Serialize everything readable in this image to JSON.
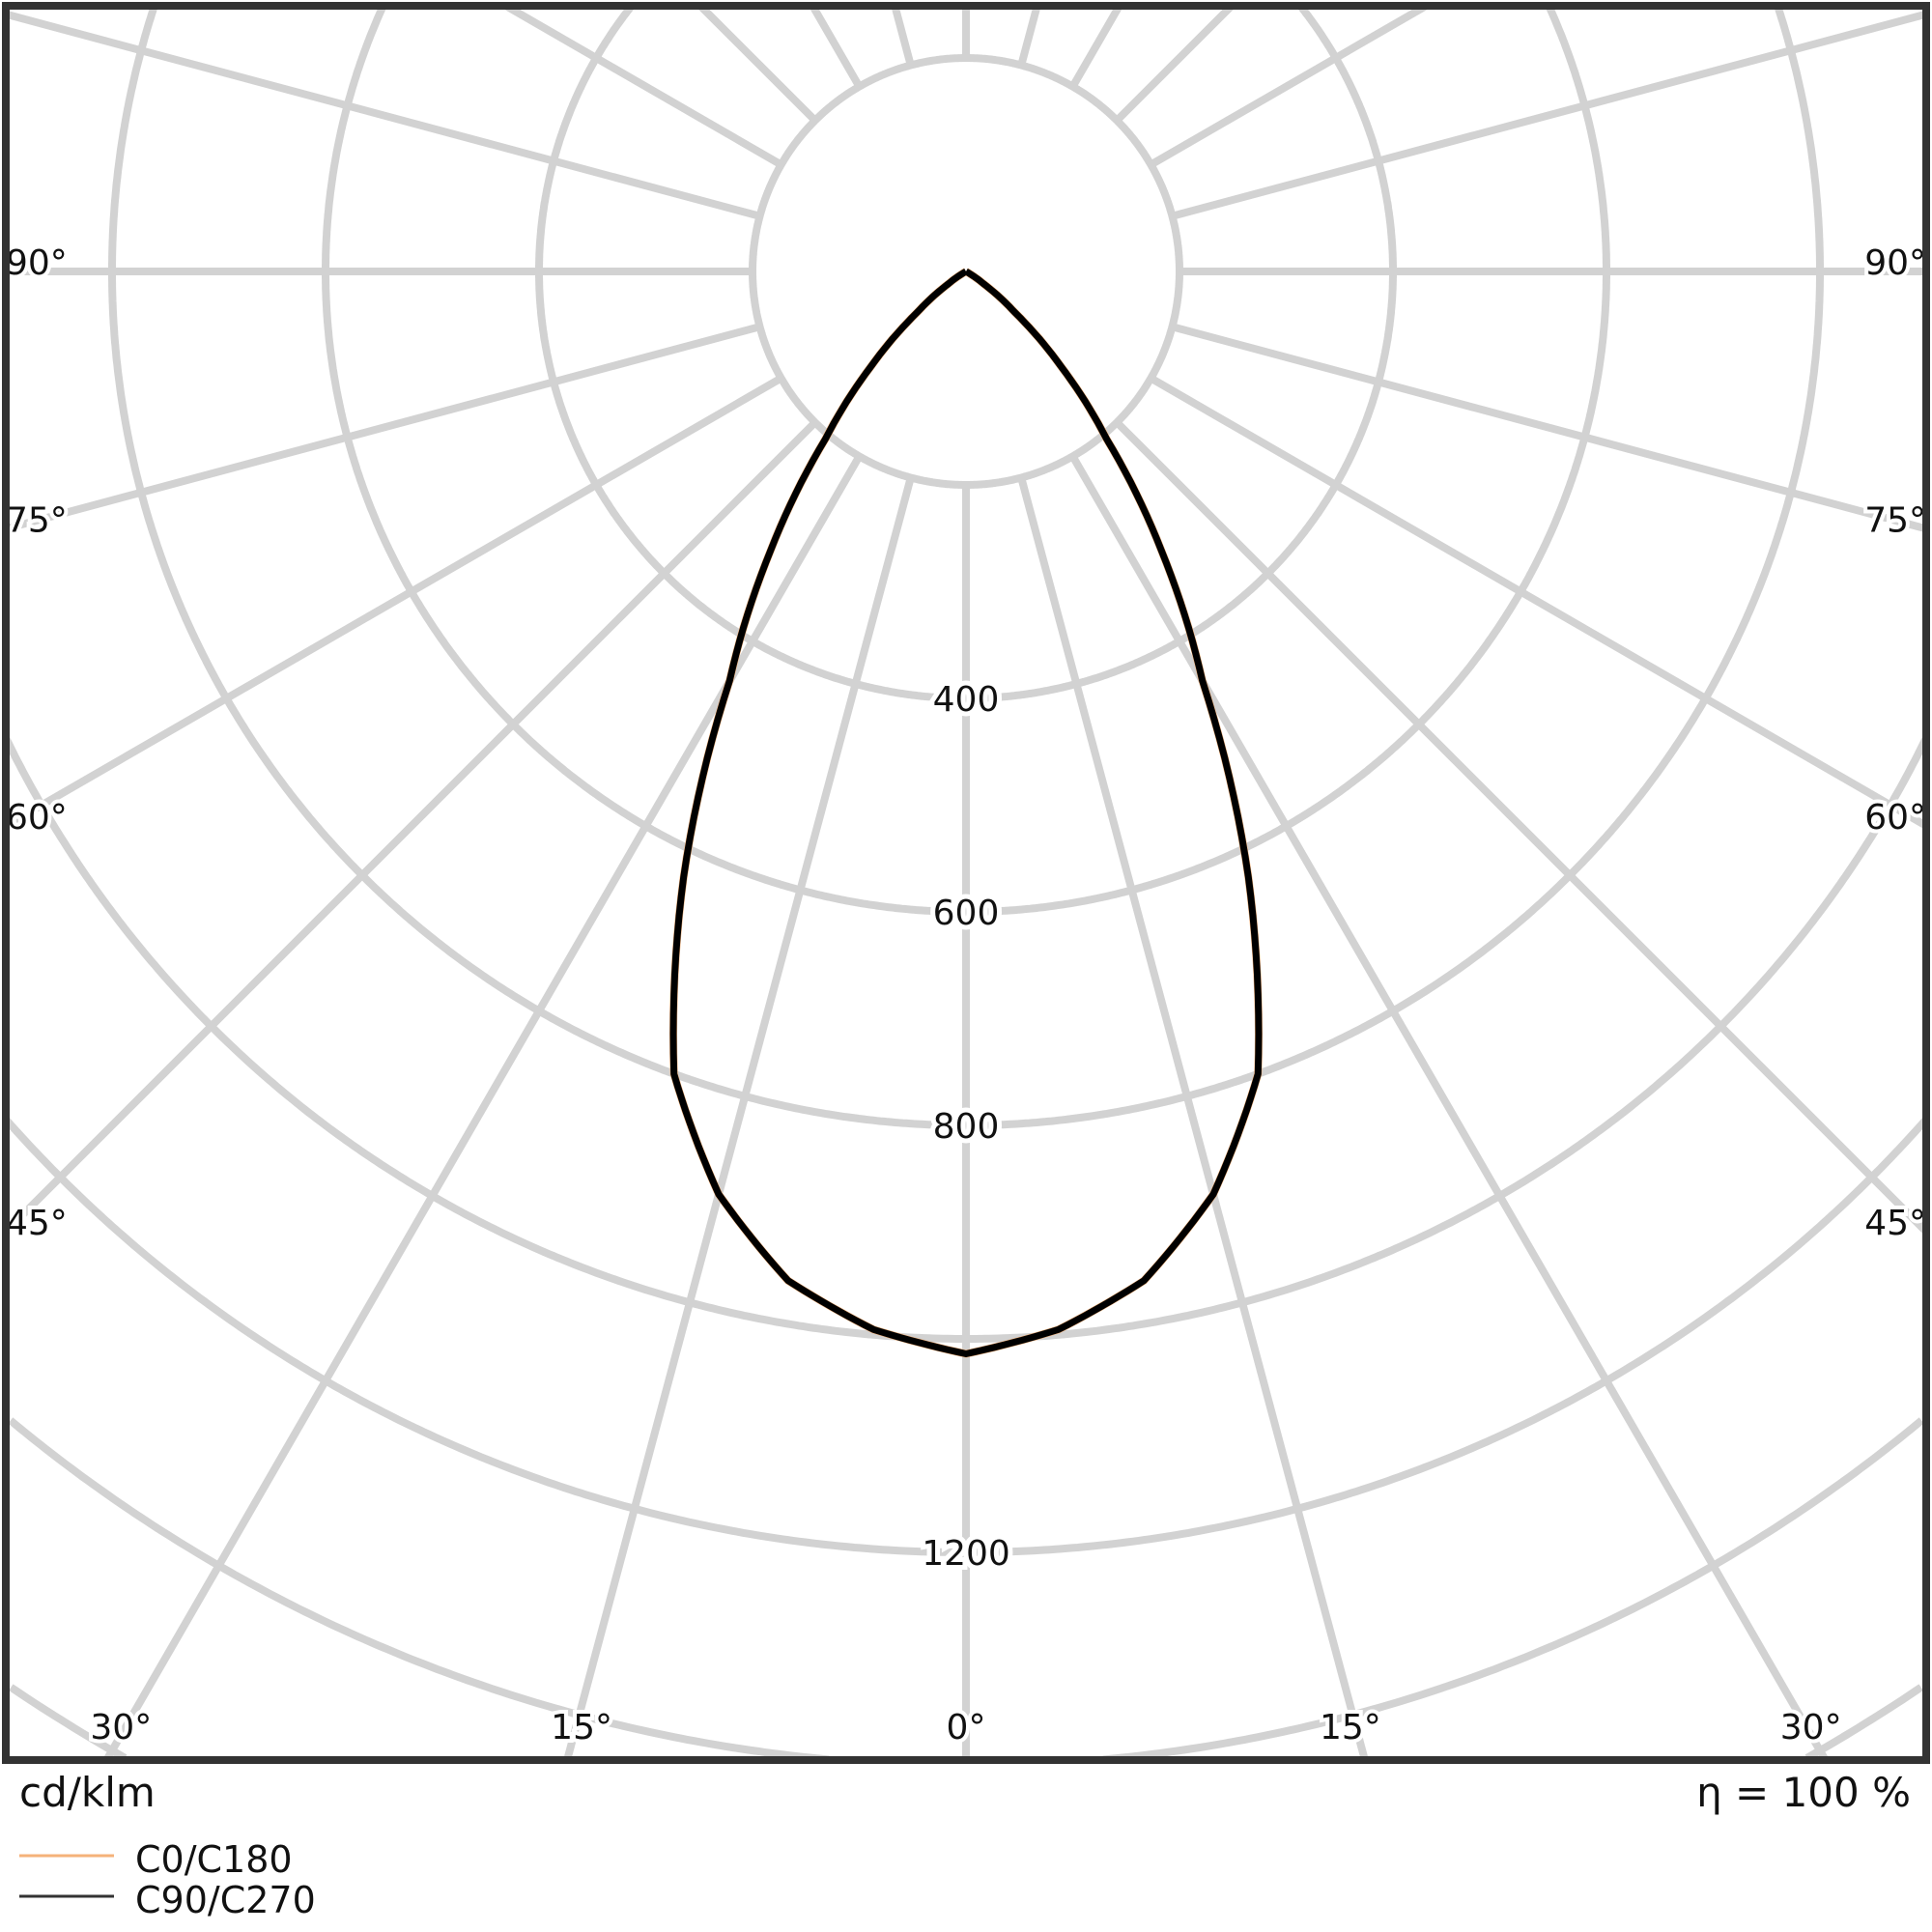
{
  "chart_data": {
    "type": "polar",
    "unit_label": "cd/klm",
    "efficiency_label": "η = 100 %",
    "grid": true,
    "radial_rings": [
      200,
      400,
      600,
      800,
      1000,
      1200,
      1400,
      1600,
      1800
    ],
    "radial_tick_labels": [
      "400",
      "600",
      "800",
      "1200"
    ],
    "radial_tick_values": [
      400,
      600,
      800,
      1200
    ],
    "angle_step_deg": 15,
    "angle_labels_left": [
      "90°",
      "75°",
      "60°",
      "45°"
    ],
    "angle_labels_bottom": [
      "30°",
      "15°",
      "0°",
      "15°",
      "30°"
    ],
    "angle_labels_right": [
      "90°",
      "75°",
      "60°",
      "45°"
    ],
    "legend_placement": "bottom-left",
    "series": [
      {
        "name": "C0/C180",
        "color": "#f5b27a",
        "gamma_deg": [
          0,
          5,
          10,
          15,
          20,
          25,
          30,
          35,
          40,
          45,
          50,
          55,
          60,
          90
        ],
        "values": [
          1014,
          995,
          960,
          895,
          800,
          626,
          443,
          319,
          205,
          126,
          60,
          20,
          0,
          0
        ]
      },
      {
        "name": "C90/C270",
        "color": "#000000",
        "gamma_deg": [
          0,
          5,
          10,
          15,
          20,
          25,
          30,
          35,
          40,
          45,
          50,
          55,
          60,
          90
        ],
        "values": [
          1014,
          995,
          960,
          895,
          800,
          626,
          443,
          319,
          205,
          126,
          60,
          20,
          0,
          0
        ]
      }
    ]
  },
  "colors": {
    "grid": "#d2d2d2",
    "frame": "#333333"
  }
}
